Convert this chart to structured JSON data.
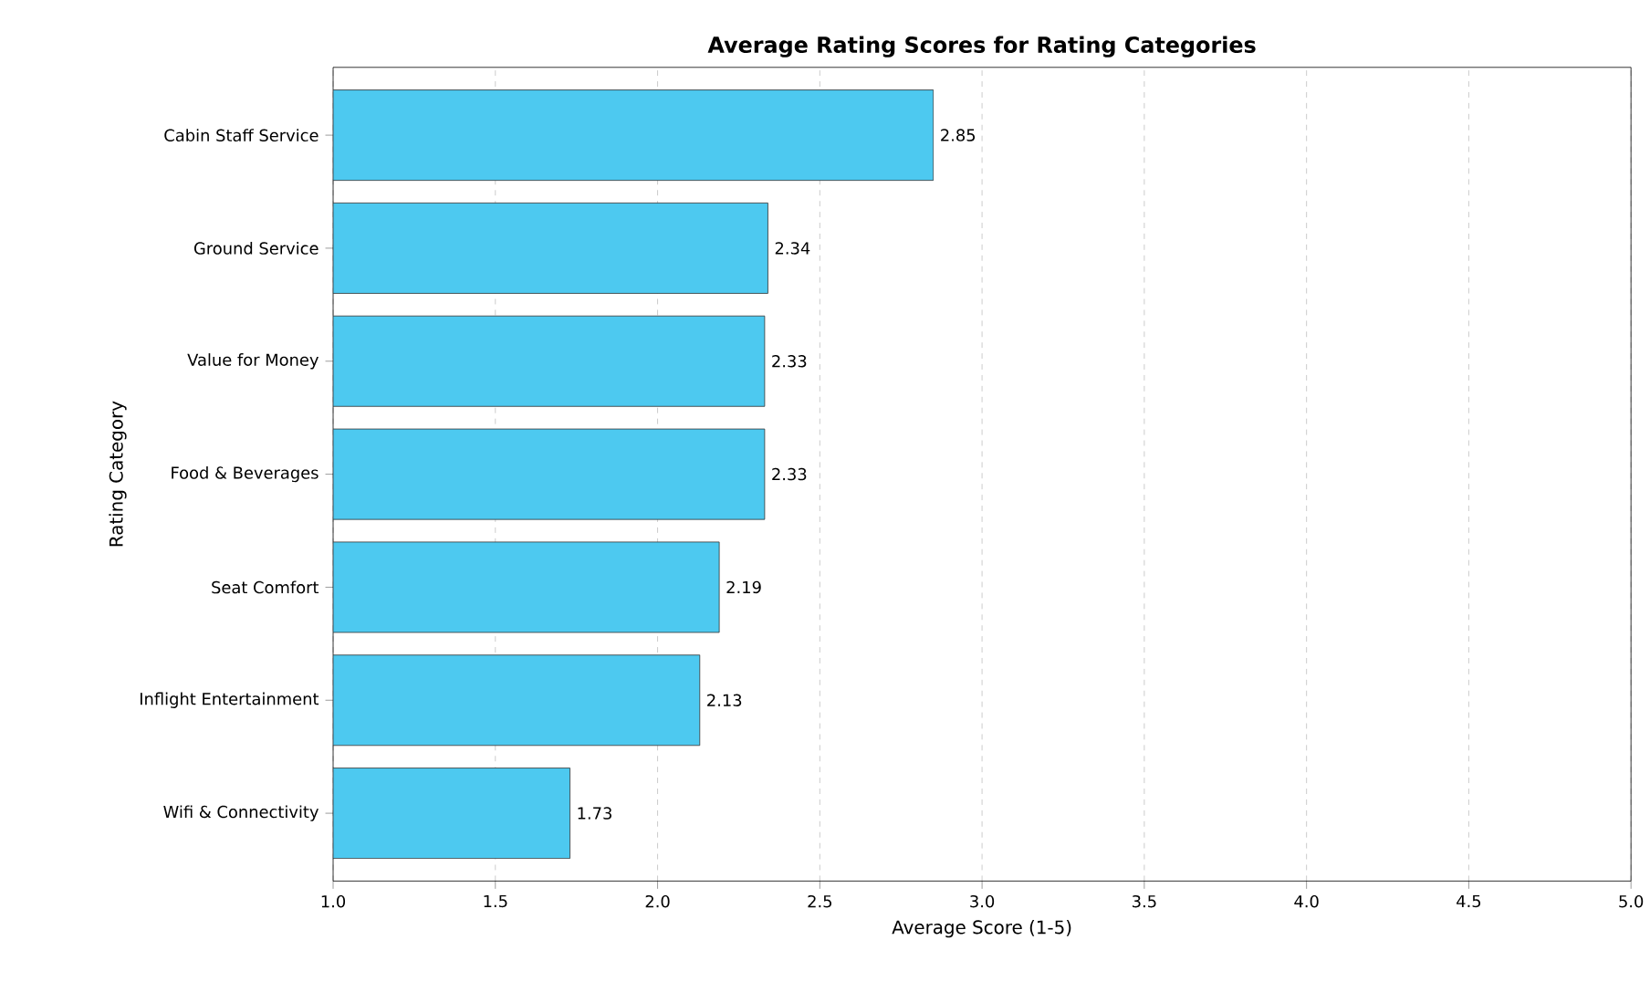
{
  "chart_data": {
    "type": "bar",
    "orientation": "horizontal",
    "title": "Average Rating Scores for Rating Categories",
    "xlabel": "Average Score (1-5)",
    "ylabel": "Rating Category",
    "categories": [
      "Cabin Staff Service",
      "Ground Service",
      "Value for Money",
      "Food & Beverages",
      "Seat Comfort",
      "Inflight Entertainment",
      "Wifi & Connectivity"
    ],
    "values": [
      2.85,
      2.34,
      2.33,
      2.33,
      2.19,
      2.13,
      1.73
    ],
    "color": "#4dc9f0",
    "xlim": [
      1,
      5
    ],
    "xticks": [
      {
        "value": 1,
        "label": "1.0"
      },
      {
        "value": 1.5,
        "label": "1.5"
      },
      {
        "value": 2,
        "label": "2.0"
      },
      {
        "value": 2.5,
        "label": "2.5"
      },
      {
        "value": 3,
        "label": "3.0"
      },
      {
        "value": 3.5,
        "label": "3.5"
      },
      {
        "value": 4,
        "label": "4.0"
      },
      {
        "value": 4.5,
        "label": "4.5"
      },
      {
        "value": 5,
        "label": "5.0"
      }
    ],
    "grid": "x",
    "data_labels": true
  }
}
